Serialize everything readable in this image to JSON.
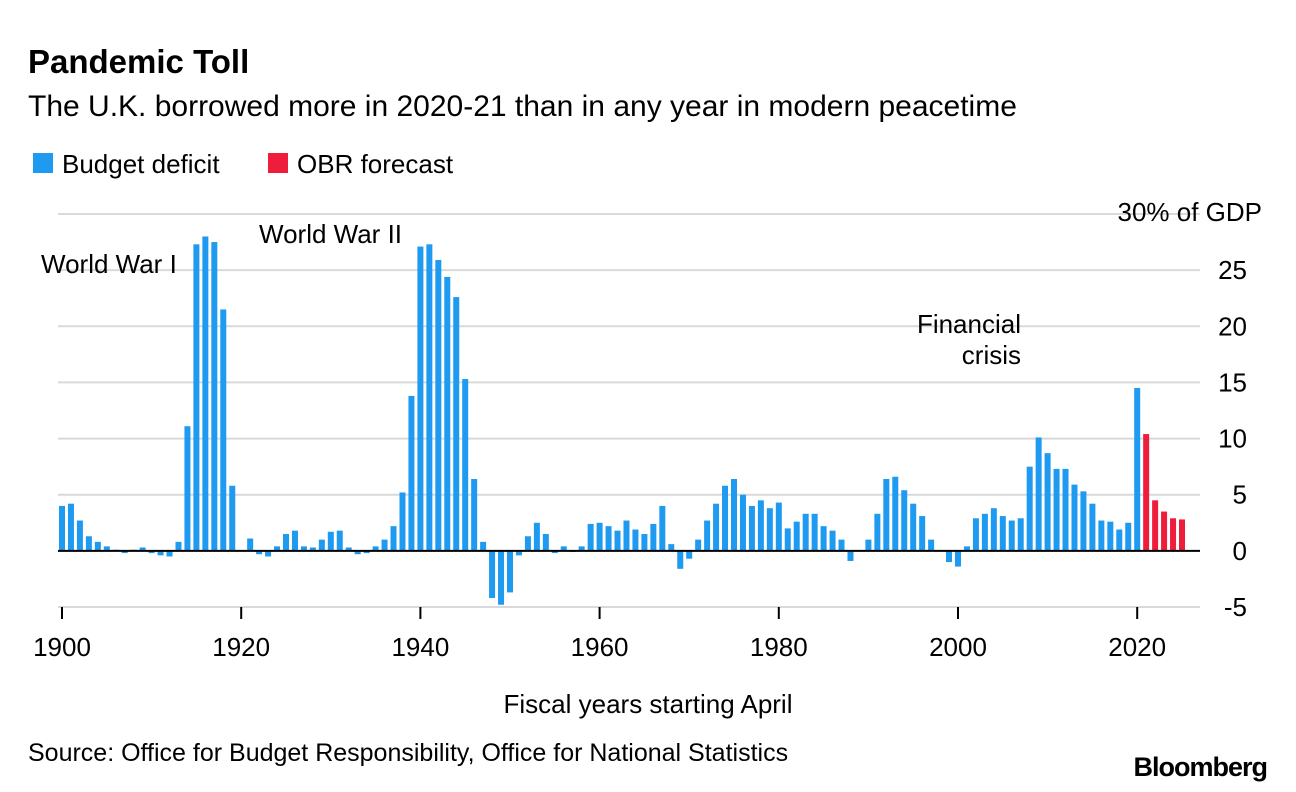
{
  "chart_data": {
    "type": "bar",
    "title": "Pandemic Toll",
    "subtitle": "The U.K. borrowed more in 2020-21 than in any year in modern peacetime",
    "xlabel": "Fiscal years starting April",
    "ylabel": "% of GDP",
    "y_unit_label": "30% of GDP",
    "ylim": [
      -5,
      30
    ],
    "y_ticks": [
      "-5",
      "0",
      "5",
      "10",
      "15",
      "20",
      "25"
    ],
    "x_ticks": [
      "1900",
      "1920",
      "1940",
      "1960",
      "1980",
      "2000",
      "2020"
    ],
    "grid": true,
    "legend_position": "top-left",
    "source": "Source: Office for Budget Responsibility, Office for National Statistics",
    "brand": "Bloomberg",
    "colors": {
      "deficit": "#1e9bf0",
      "forecast": "#ee1d3c",
      "grid": "#d9d9d9",
      "zero_line": "#000000"
    },
    "series": [
      {
        "name": "Budget deficit",
        "start_year": 1900,
        "values": [
          4.0,
          4.2,
          2.7,
          1.3,
          0.8,
          0.4,
          0.1,
          -0.2,
          0.1,
          0.3,
          -0.2,
          -0.4,
          -0.5,
          0.8,
          11.1,
          27.3,
          28.0,
          27.5,
          21.5,
          5.8,
          0.0,
          1.1,
          -0.3,
          -0.5,
          0.4,
          1.5,
          1.8,
          0.4,
          0.3,
          1.0,
          1.7,
          1.8,
          0.3,
          -0.3,
          -0.2,
          0.4,
          1.0,
          2.2,
          5.2,
          13.8,
          27.1,
          27.3,
          25.9,
          24.4,
          22.6,
          15.3,
          6.4,
          0.8,
          -4.2,
          -4.8,
          -3.7,
          -0.4,
          1.3,
          2.5,
          1.5,
          -0.2,
          0.4,
          -0.1,
          0.4,
          2.4,
          2.5,
          2.2,
          1.8,
          2.7,
          1.9,
          1.5,
          2.4,
          4.0,
          0.6,
          -1.6,
          -0.7,
          1.0,
          2.7,
          4.2,
          5.8,
          6.4,
          5.0,
          4.0,
          4.5,
          3.8,
          4.3,
          2.0,
          2.6,
          3.3,
          3.3,
          2.2,
          1.8,
          1.0,
          -0.9,
          0.0,
          1.0,
          3.3,
          6.4,
          6.6,
          5.4,
          4.2,
          3.1,
          1.0,
          0.0,
          -1.0,
          -1.4,
          0.4,
          2.9,
          3.3,
          3.8,
          3.1,
          2.7,
          2.9,
          7.5,
          10.1,
          8.7,
          7.3,
          7.3,
          5.9,
          5.3,
          4.2,
          2.7,
          2.6,
          1.9,
          2.5,
          14.5
        ]
      },
      {
        "name": "OBR forecast",
        "start_year": 2021,
        "values": [
          10.4,
          4.5,
          3.5,
          2.9,
          2.8
        ]
      }
    ],
    "annotations": [
      {
        "text": "World War I",
        "year": 1917
      },
      {
        "text": "World War II",
        "year": 1942
      },
      {
        "text": "Financial",
        "year": 2009
      },
      {
        "text": "crisis",
        "year": 2009
      }
    ]
  }
}
